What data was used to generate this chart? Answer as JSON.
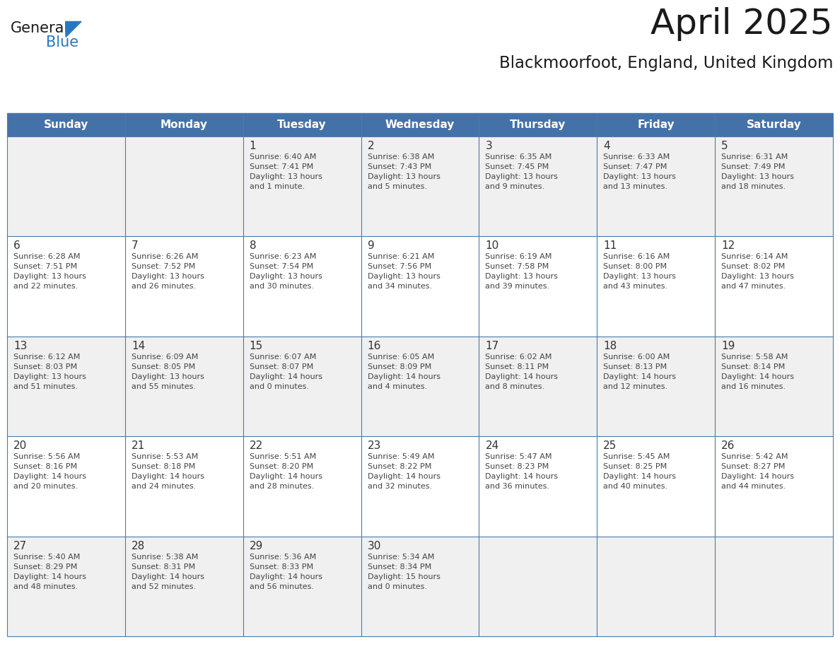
{
  "title": "April 2025",
  "subtitle": "Blackmoorfoot, England, United Kingdom",
  "header_bg": "#4472a8",
  "header_text": "#ffffff",
  "header_days": [
    "Sunday",
    "Monday",
    "Tuesday",
    "Wednesday",
    "Thursday",
    "Friday",
    "Saturday"
  ],
  "row_bg_odd": "#f0f0f0",
  "row_bg_even": "#ffffff",
  "cell_border": "#4a7aaa",
  "day_number_color": "#333333",
  "cell_text_color": "#444444",
  "logo_general_color": "#1a1a1a",
  "logo_blue_color": "#2778c4",
  "logo_triangle_color": "#2778c4",
  "weeks": [
    [
      {
        "day": null,
        "text": ""
      },
      {
        "day": null,
        "text": ""
      },
      {
        "day": 1,
        "text": "Sunrise: 6:40 AM\nSunset: 7:41 PM\nDaylight: 13 hours\nand 1 minute."
      },
      {
        "day": 2,
        "text": "Sunrise: 6:38 AM\nSunset: 7:43 PM\nDaylight: 13 hours\nand 5 minutes."
      },
      {
        "day": 3,
        "text": "Sunrise: 6:35 AM\nSunset: 7:45 PM\nDaylight: 13 hours\nand 9 minutes."
      },
      {
        "day": 4,
        "text": "Sunrise: 6:33 AM\nSunset: 7:47 PM\nDaylight: 13 hours\nand 13 minutes."
      },
      {
        "day": 5,
        "text": "Sunrise: 6:31 AM\nSunset: 7:49 PM\nDaylight: 13 hours\nand 18 minutes."
      }
    ],
    [
      {
        "day": 6,
        "text": "Sunrise: 6:28 AM\nSunset: 7:51 PM\nDaylight: 13 hours\nand 22 minutes."
      },
      {
        "day": 7,
        "text": "Sunrise: 6:26 AM\nSunset: 7:52 PM\nDaylight: 13 hours\nand 26 minutes."
      },
      {
        "day": 8,
        "text": "Sunrise: 6:23 AM\nSunset: 7:54 PM\nDaylight: 13 hours\nand 30 minutes."
      },
      {
        "day": 9,
        "text": "Sunrise: 6:21 AM\nSunset: 7:56 PM\nDaylight: 13 hours\nand 34 minutes."
      },
      {
        "day": 10,
        "text": "Sunrise: 6:19 AM\nSunset: 7:58 PM\nDaylight: 13 hours\nand 39 minutes."
      },
      {
        "day": 11,
        "text": "Sunrise: 6:16 AM\nSunset: 8:00 PM\nDaylight: 13 hours\nand 43 minutes."
      },
      {
        "day": 12,
        "text": "Sunrise: 6:14 AM\nSunset: 8:02 PM\nDaylight: 13 hours\nand 47 minutes."
      }
    ],
    [
      {
        "day": 13,
        "text": "Sunrise: 6:12 AM\nSunset: 8:03 PM\nDaylight: 13 hours\nand 51 minutes."
      },
      {
        "day": 14,
        "text": "Sunrise: 6:09 AM\nSunset: 8:05 PM\nDaylight: 13 hours\nand 55 minutes."
      },
      {
        "day": 15,
        "text": "Sunrise: 6:07 AM\nSunset: 8:07 PM\nDaylight: 14 hours\nand 0 minutes."
      },
      {
        "day": 16,
        "text": "Sunrise: 6:05 AM\nSunset: 8:09 PM\nDaylight: 14 hours\nand 4 minutes."
      },
      {
        "day": 17,
        "text": "Sunrise: 6:02 AM\nSunset: 8:11 PM\nDaylight: 14 hours\nand 8 minutes."
      },
      {
        "day": 18,
        "text": "Sunrise: 6:00 AM\nSunset: 8:13 PM\nDaylight: 14 hours\nand 12 minutes."
      },
      {
        "day": 19,
        "text": "Sunrise: 5:58 AM\nSunset: 8:14 PM\nDaylight: 14 hours\nand 16 minutes."
      }
    ],
    [
      {
        "day": 20,
        "text": "Sunrise: 5:56 AM\nSunset: 8:16 PM\nDaylight: 14 hours\nand 20 minutes."
      },
      {
        "day": 21,
        "text": "Sunrise: 5:53 AM\nSunset: 8:18 PM\nDaylight: 14 hours\nand 24 minutes."
      },
      {
        "day": 22,
        "text": "Sunrise: 5:51 AM\nSunset: 8:20 PM\nDaylight: 14 hours\nand 28 minutes."
      },
      {
        "day": 23,
        "text": "Sunrise: 5:49 AM\nSunset: 8:22 PM\nDaylight: 14 hours\nand 32 minutes."
      },
      {
        "day": 24,
        "text": "Sunrise: 5:47 AM\nSunset: 8:23 PM\nDaylight: 14 hours\nand 36 minutes."
      },
      {
        "day": 25,
        "text": "Sunrise: 5:45 AM\nSunset: 8:25 PM\nDaylight: 14 hours\nand 40 minutes."
      },
      {
        "day": 26,
        "text": "Sunrise: 5:42 AM\nSunset: 8:27 PM\nDaylight: 14 hours\nand 44 minutes."
      }
    ],
    [
      {
        "day": 27,
        "text": "Sunrise: 5:40 AM\nSunset: 8:29 PM\nDaylight: 14 hours\nand 48 minutes."
      },
      {
        "day": 28,
        "text": "Sunrise: 5:38 AM\nSunset: 8:31 PM\nDaylight: 14 hours\nand 52 minutes."
      },
      {
        "day": 29,
        "text": "Sunrise: 5:36 AM\nSunset: 8:33 PM\nDaylight: 14 hours\nand 56 minutes."
      },
      {
        "day": 30,
        "text": "Sunrise: 5:34 AM\nSunset: 8:34 PM\nDaylight: 15 hours\nand 0 minutes."
      },
      {
        "day": null,
        "text": ""
      },
      {
        "day": null,
        "text": ""
      },
      {
        "day": null,
        "text": ""
      }
    ]
  ]
}
